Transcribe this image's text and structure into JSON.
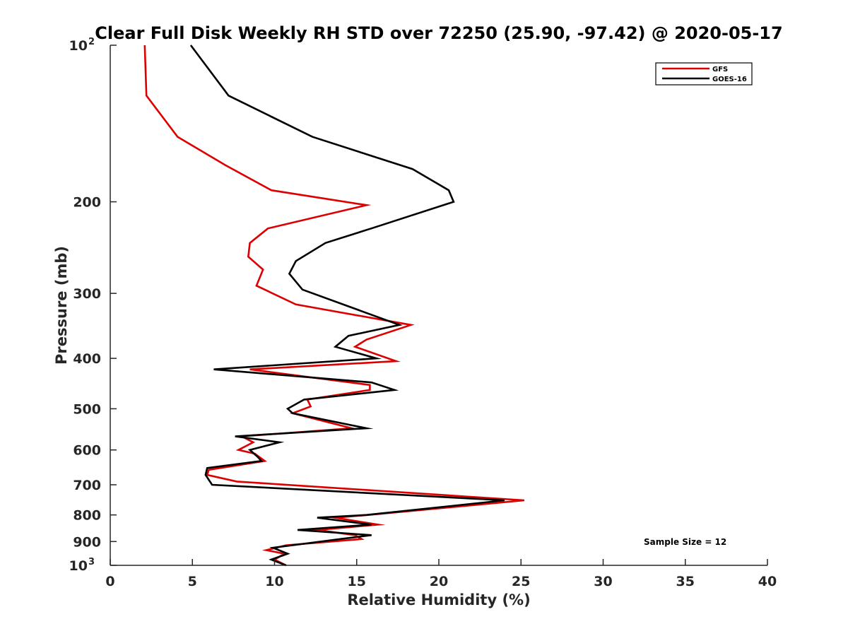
{
  "chart_data": {
    "type": "line",
    "title": "Clear Full Disk Weekly RH STD over 72250 (25.90, -97.42) @ 2020-05-17",
    "xlabel": "Relative Humidity (%)",
    "ylabel": "Pressure (mb)",
    "xlim": [
      0,
      40
    ],
    "ylim": [
      100,
      1000
    ],
    "yscale": "log",
    "y_reversed": true,
    "x_ticks": [
      "0",
      "5",
      "10",
      "15",
      "20",
      "25",
      "30",
      "35",
      "40"
    ],
    "y_ticks": [
      {
        "value": 100,
        "label": "10",
        "sup": "2"
      },
      {
        "value": 200,
        "label": "200"
      },
      {
        "value": 300,
        "label": "300"
      },
      {
        "value": 400,
        "label": "400"
      },
      {
        "value": 500,
        "label": "500"
      },
      {
        "value": 600,
        "label": "600"
      },
      {
        "value": 700,
        "label": "700"
      },
      {
        "value": 800,
        "label": "800"
      },
      {
        "value": 900,
        "label": "900"
      },
      {
        "value": 1000,
        "label": "10",
        "sup": "3"
      }
    ],
    "grid": false,
    "legend_position": "top-right",
    "annotation": "Sample Size = 12",
    "series": [
      {
        "name": "GFS",
        "color": "#dd0000",
        "points": [
          [
            2.1,
            100
          ],
          [
            2.2,
            125
          ],
          [
            4.1,
            150
          ],
          [
            7.0,
            170
          ],
          [
            9.8,
            190
          ],
          [
            15.6,
            203
          ],
          [
            9.6,
            225
          ],
          [
            8.5,
            240
          ],
          [
            8.4,
            255
          ],
          [
            9.3,
            270
          ],
          [
            8.9,
            290
          ],
          [
            11.3,
            315
          ],
          [
            18.3,
            345
          ],
          [
            15.6,
            368
          ],
          [
            14.9,
            380
          ],
          [
            17.4,
            405
          ],
          [
            8.5,
            420
          ],
          [
            15.8,
            450
          ],
          [
            15.8,
            460
          ],
          [
            12.0,
            480
          ],
          [
            12.2,
            495
          ],
          [
            11.1,
            510
          ],
          [
            14.7,
            545
          ],
          [
            8.0,
            565
          ],
          [
            8.7,
            580
          ],
          [
            7.8,
            600
          ],
          [
            8.8,
            610
          ],
          [
            9.4,
            630
          ],
          [
            6.0,
            655
          ],
          [
            5.9,
            670
          ],
          [
            7.7,
            690
          ],
          [
            25.2,
            750
          ],
          [
            15.7,
            800
          ],
          [
            13.7,
            810
          ],
          [
            16.3,
            835
          ],
          [
            12.6,
            855
          ],
          [
            14.9,
            875
          ],
          [
            15.3,
            890
          ],
          [
            10.7,
            915
          ],
          [
            9.5,
            935
          ],
          [
            10.6,
            950
          ],
          [
            10.0,
            975
          ],
          [
            10.7,
            1000
          ]
        ]
      },
      {
        "name": "GOES-16",
        "color": "#000000",
        "points": [
          [
            4.9,
            100
          ],
          [
            7.2,
            125
          ],
          [
            12.3,
            150
          ],
          [
            18.4,
            173
          ],
          [
            20.6,
            190
          ],
          [
            20.9,
            200
          ],
          [
            15.9,
            225
          ],
          [
            13.1,
            240
          ],
          [
            11.3,
            260
          ],
          [
            10.9,
            275
          ],
          [
            11.7,
            295
          ],
          [
            17.6,
            345
          ],
          [
            14.5,
            362
          ],
          [
            13.7,
            380
          ],
          [
            16.2,
            400
          ],
          [
            6.3,
            420
          ],
          [
            15.9,
            445
          ],
          [
            17.3,
            460
          ],
          [
            11.8,
            480
          ],
          [
            10.8,
            500
          ],
          [
            11.1,
            510
          ],
          [
            15.6,
            545
          ],
          [
            7.6,
            565
          ],
          [
            10.3,
            580
          ],
          [
            8.5,
            600
          ],
          [
            9.0,
            620
          ],
          [
            9.2,
            630
          ],
          [
            5.9,
            650
          ],
          [
            5.8,
            670
          ],
          [
            6.2,
            700
          ],
          [
            24.0,
            750
          ],
          [
            15.6,
            800
          ],
          [
            12.6,
            810
          ],
          [
            15.9,
            835
          ],
          [
            11.4,
            855
          ],
          [
            15.9,
            875
          ],
          [
            14.0,
            890
          ],
          [
            9.9,
            925
          ],
          [
            10.8,
            950
          ],
          [
            9.8,
            975
          ],
          [
            10.7,
            1000
          ]
        ]
      }
    ]
  }
}
